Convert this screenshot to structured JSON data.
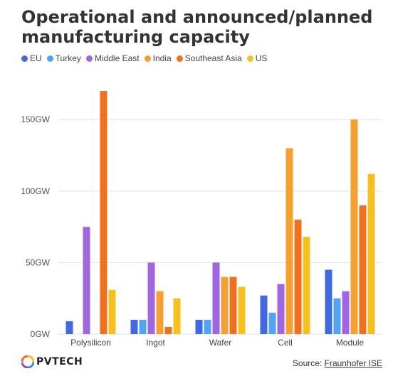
{
  "title": "Operational and announced/planned manufacturing capacity",
  "legend": [
    {
      "label": "EU",
      "color": "#4169e1"
    },
    {
      "label": "Turkey",
      "color": "#53a3f5"
    },
    {
      "label": "Middle East",
      "color": "#a066e0"
    },
    {
      "label": "India",
      "color": "#f5a030"
    },
    {
      "label": "Southeast Asia",
      "color": "#f07020"
    },
    {
      "label": "US",
      "color": "#f5c020"
    }
  ],
  "footer": {
    "logo_text": "PVTECH",
    "source_prefix": "Source: ",
    "source_link": "Fraunhofer ISE"
  },
  "chart_data": {
    "type": "bar",
    "categories": [
      "Polysilicon",
      "Ingot",
      "Wafer",
      "Cell",
      "Module"
    ],
    "series": [
      {
        "name": "EU",
        "color": "#4169e1",
        "values": [
          9,
          10,
          10,
          27,
          45
        ]
      },
      {
        "name": "Turkey",
        "color": "#53a3f5",
        "values": [
          0,
          10,
          10,
          15,
          25
        ]
      },
      {
        "name": "Middle East",
        "color": "#a066e0",
        "values": [
          75,
          50,
          50,
          35,
          30
        ]
      },
      {
        "name": "India",
        "color": "#f5a030",
        "values": [
          0,
          30,
          40,
          130,
          150
        ]
      },
      {
        "name": "Southeast Asia",
        "color": "#f07020",
        "values": [
          170,
          5,
          40,
          80,
          90
        ]
      },
      {
        "name": "US",
        "color": "#f5c020",
        "values": [
          31,
          25,
          33,
          68,
          112
        ]
      }
    ],
    "yticks": [
      "0GW",
      "50GW",
      "100GW",
      "150GW"
    ],
    "ytick_values": [
      0,
      50,
      100,
      150
    ],
    "ylim": [
      0,
      170
    ],
    "xlabel": "",
    "ylabel": "",
    "grid": true,
    "legend_position": "top-left"
  }
}
